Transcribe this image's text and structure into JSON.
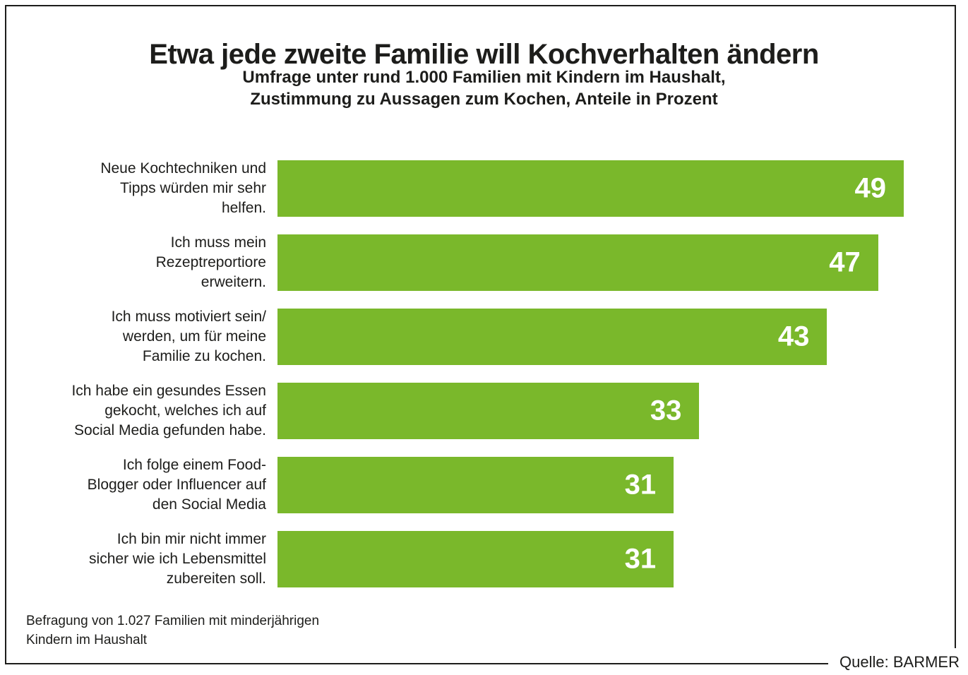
{
  "chart_data": {
    "type": "bar",
    "orientation": "horizontal",
    "title": "Etwa jede zweite Familie will Kochverhalten ändern",
    "subtitle": "Umfrage unter rund 1.000 Familien mit Kindern im Haushalt,\nZustimmung zu Aussagen zum Kochen, Anteile in Prozent",
    "categories": [
      "Neue Kochtechniken und\nTipps würden mir sehr\nhelfen.",
      "Ich muss mein\nRezeptreportiore\nerweitern.",
      "Ich muss motiviert sein/\nwerden, um für meine\nFamilie zu kochen.",
      "Ich habe ein gesundes Essen\ngekocht, welches ich auf\nSocial Media gefunden habe.",
      "Ich folge einem Food-\nBlogger oder Influencer auf\nden Social Media",
      "Ich bin mir nicht immer\nsicher wie ich Lebensmittel\nzubereiten soll."
    ],
    "values": [
      49,
      47,
      43,
      33,
      31,
      31
    ],
    "unit": "percent",
    "xmax": 49,
    "grid": false,
    "legend": "none",
    "value_labels": "inside-right"
  },
  "footnote": "Befragung von 1.027 Familien mit minderjährigen\nKindern im Haushalt",
  "source": "Quelle: BARMER",
  "colors": {
    "bar_green": "#7ab82b",
    "value_text": "#ffffff",
    "text": "#1d1d1b",
    "background": "#ffffff",
    "frame_border": "#1d1d1b"
  }
}
